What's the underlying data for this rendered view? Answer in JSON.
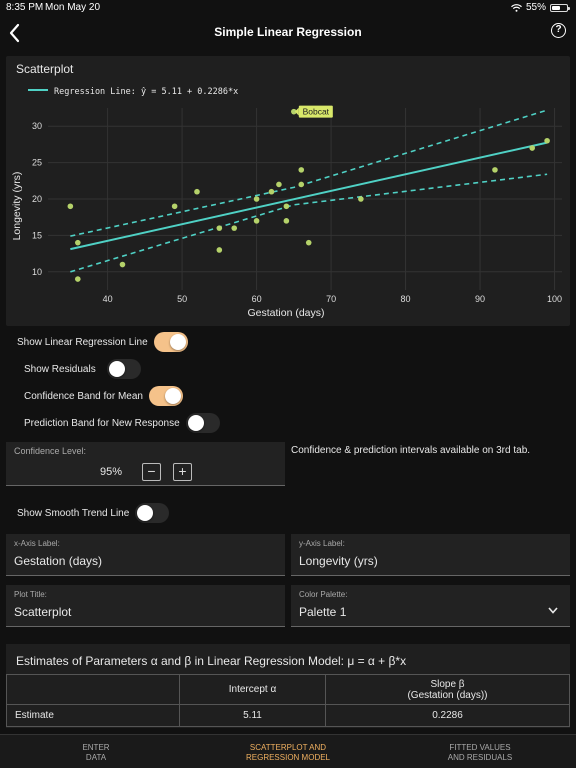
{
  "status": {
    "time": "8:35 PM",
    "date": "Mon May 20",
    "battery": "55%",
    "battery_level": 0.55
  },
  "nav": {
    "title": "Simple Linear Regression"
  },
  "plot": {
    "card_title": "Scatterplot",
    "legend": "Regression Line: ŷ = 5.11 + 0.2286*x",
    "annotation": "Bobcat",
    "colors": {
      "points": "#b5d26a",
      "line": "#4fd1c5",
      "annotation_bg": "#d9e86a"
    }
  },
  "chart_data": {
    "type": "scatter",
    "title": "Scatterplot",
    "xlabel": "Gestation (days)",
    "ylabel": "Longevity (yrs)",
    "xlim": [
      32,
      101
    ],
    "ylim": [
      7.5,
      32.5
    ],
    "xticks": [
      40,
      50,
      60,
      70,
      80,
      90,
      100
    ],
    "yticks": [
      10,
      15,
      20,
      25,
      30
    ],
    "points": [
      {
        "x": 35,
        "y": 19
      },
      {
        "x": 36,
        "y": 14
      },
      {
        "x": 36,
        "y": 9
      },
      {
        "x": 42,
        "y": 11
      },
      {
        "x": 49,
        "y": 19
      },
      {
        "x": 52,
        "y": 21
      },
      {
        "x": 55,
        "y": 16
      },
      {
        "x": 55,
        "y": 13
      },
      {
        "x": 57,
        "y": 16
      },
      {
        "x": 60,
        "y": 20
      },
      {
        "x": 60,
        "y": 17
      },
      {
        "x": 62,
        "y": 21
      },
      {
        "x": 63,
        "y": 22
      },
      {
        "x": 64,
        "y": 19
      },
      {
        "x": 64,
        "y": 17
      },
      {
        "x": 65,
        "y": 32
      },
      {
        "x": 66,
        "y": 22
      },
      {
        "x": 66,
        "y": 24
      },
      {
        "x": 67,
        "y": 14
      },
      {
        "x": 74,
        "y": 20
      },
      {
        "x": 92,
        "y": 24
      },
      {
        "x": 97,
        "y": 27
      },
      {
        "x": 99,
        "y": 28
      }
    ],
    "labeled_point": {
      "x": 65,
      "y": 32,
      "label": "Bobcat"
    },
    "regression_line": {
      "intercept": 5.11,
      "slope": 0.2286,
      "x_range": [
        35,
        99
      ]
    },
    "confidence_band": {
      "upper": [
        [
          35,
          14.9
        ],
        [
          65,
          21.6
        ],
        [
          99,
          32.2
        ]
      ],
      "lower": [
        [
          35,
          10.0
        ],
        [
          65,
          19.2
        ],
        [
          99,
          23.4
        ]
      ]
    },
    "grid": true,
    "legend_position": "top-left"
  },
  "toggles": {
    "regression_line": {
      "label": "Show Linear Regression Line",
      "on": true
    },
    "residuals": {
      "label": "Show Residuals",
      "on": false
    },
    "confidence_band": {
      "label": "Confidence Band for Mean",
      "on": true
    },
    "prediction_band": {
      "label": "Prediction Band for New Response",
      "on": false
    },
    "smooth_trend": {
      "label": "Show Smooth Trend Line",
      "on": false
    }
  },
  "confidence": {
    "caption": "Confidence Level:",
    "value": "95%",
    "minus": "−",
    "plus": "+",
    "note": "Confidence & prediction intervals available on 3rd tab."
  },
  "fields": {
    "x_axis": {
      "caption": "x-Axis Label:",
      "value": "Gestation (days)"
    },
    "y_axis": {
      "caption": "y-Axis Label:",
      "value": "Longevity (yrs)"
    },
    "plot_title": {
      "caption": "Plot Title:",
      "value": "Scatterplot"
    },
    "palette": {
      "caption": "Color Palette:",
      "value": "Palette 1"
    }
  },
  "estimates": {
    "title": "Estimates of Parameters α and β in Linear Regression Model: μ = α + β*x",
    "col_intercept": "Intercept α",
    "col_slope_1": "Slope β",
    "col_slope_2": "(Gestation (days))",
    "row_label": "Estimate",
    "intercept": "5.11",
    "slope": "0.2286"
  },
  "tabs": [
    {
      "line1": "ENTER",
      "line2": "DATA"
    },
    {
      "line1": "SCATTERPLOT AND",
      "line2": "REGRESSION MODEL"
    },
    {
      "line1": "FITTED VALUES",
      "line2": "AND RESIDUALS"
    }
  ]
}
